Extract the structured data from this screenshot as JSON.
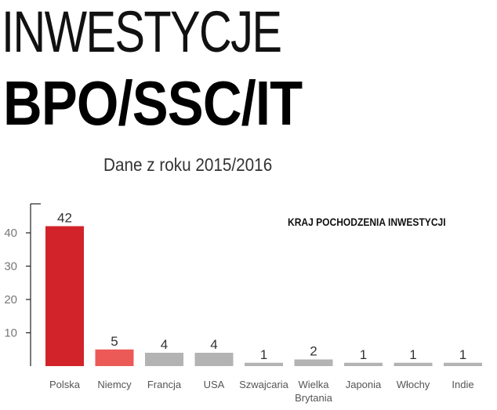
{
  "header": {
    "title_line1": "INWESTYCJE",
    "title_line2": "BPO/SSC/IT",
    "subtitle": "Dane z roku 2015/2016"
  },
  "chart_data": {
    "type": "bar",
    "title": "KRAJ POCHODZENIA INWESTYCJI",
    "categories": [
      "Polska",
      "Niemcy",
      "Francja",
      "USA",
      "Szwajcaria",
      "Wielka Brytania",
      "Japonia",
      "Włochy",
      "Indie"
    ],
    "category_lines": [
      [
        "Polska"
      ],
      [
        "Niemcy"
      ],
      [
        "Francja"
      ],
      [
        "USA"
      ],
      [
        "Szwajcaria"
      ],
      [
        "Wielka",
        "Brytania"
      ],
      [
        "Japonia"
      ],
      [
        "Włochy"
      ],
      [
        "Indie"
      ]
    ],
    "values": [
      42,
      5,
      4,
      4,
      1,
      2,
      1,
      1,
      1
    ],
    "bar_colors": [
      "#d2232a",
      "#ec5a57",
      "#b3b3b3",
      "#b3b3b3",
      "#b3b3b3",
      "#b3b3b3",
      "#b3b3b3",
      "#b3b3b3",
      "#b3b3b3"
    ],
    "yticks": [
      10,
      20,
      30,
      40
    ],
    "ylim": [
      0,
      45
    ],
    "xlabel": "",
    "ylabel": "",
    "grid": false,
    "data_labels": true
  }
}
